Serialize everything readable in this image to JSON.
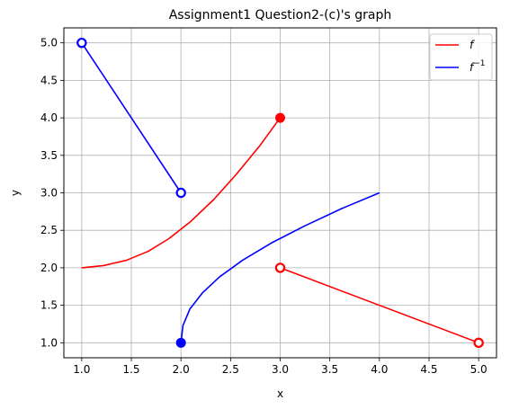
{
  "chart_data": {
    "type": "line",
    "title": "Assignment1 Question2-(c)'s graph",
    "xlabel": "x",
    "ylabel": "y",
    "xlim": [
      0.82,
      5.18
    ],
    "ylim": [
      0.8,
      5.2
    ],
    "xticks": [
      "1.0",
      "1.5",
      "2.0",
      "2.5",
      "3.0",
      "3.5",
      "4.0",
      "4.5",
      "5.0"
    ],
    "yticks": [
      "1.0",
      "1.5",
      "2.0",
      "2.5",
      "3.0",
      "3.5",
      "4.0",
      "4.5",
      "5.0"
    ],
    "grid": true,
    "legend_position": "top-right",
    "legend": [
      {
        "label": "f",
        "color": "#ff0000"
      },
      {
        "label": "f",
        "sup": "−1",
        "color": "#0000ff"
      }
    ],
    "series": [
      {
        "name": "f",
        "color": "#ff0000",
        "segments": [
          [
            [
              1.0,
              2.0
            ],
            [
              1.22,
              2.03
            ],
            [
              1.45,
              2.1
            ],
            [
              1.67,
              2.22
            ],
            [
              1.88,
              2.39
            ],
            [
              2.1,
              2.62
            ],
            [
              2.33,
              2.91
            ],
            [
              2.56,
              3.25
            ],
            [
              2.79,
              3.62
            ],
            [
              3.0,
              4.0
            ]
          ],
          [
            [
              3.0,
              2.0
            ],
            [
              5.0,
              1.0
            ]
          ]
        ],
        "markers": [
          {
            "x": 3.0,
            "y": 4.0,
            "filled": true
          },
          {
            "x": 3.0,
            "y": 2.0,
            "filled": false
          },
          {
            "x": 5.0,
            "y": 1.0,
            "filled": false
          }
        ]
      },
      {
        "name": "f^-1",
        "color": "#0000ff",
        "segments": [
          [
            [
              1.0,
              5.0
            ],
            [
              2.0,
              3.0
            ]
          ],
          [
            [
              2.0,
              1.0
            ],
            [
              2.02,
              1.23
            ],
            [
              2.09,
              1.45
            ],
            [
              2.22,
              1.67
            ],
            [
              2.39,
              1.88
            ],
            [
              2.62,
              2.1
            ],
            [
              2.91,
              2.33
            ],
            [
              3.25,
              2.56
            ],
            [
              3.62,
              2.79
            ],
            [
              4.0,
              3.0
            ]
          ]
        ],
        "markers": [
          {
            "x": 1.0,
            "y": 5.0,
            "filled": false
          },
          {
            "x": 2.0,
            "y": 3.0,
            "filled": false
          },
          {
            "x": 2.0,
            "y": 1.0,
            "filled": true
          }
        ]
      }
    ]
  }
}
